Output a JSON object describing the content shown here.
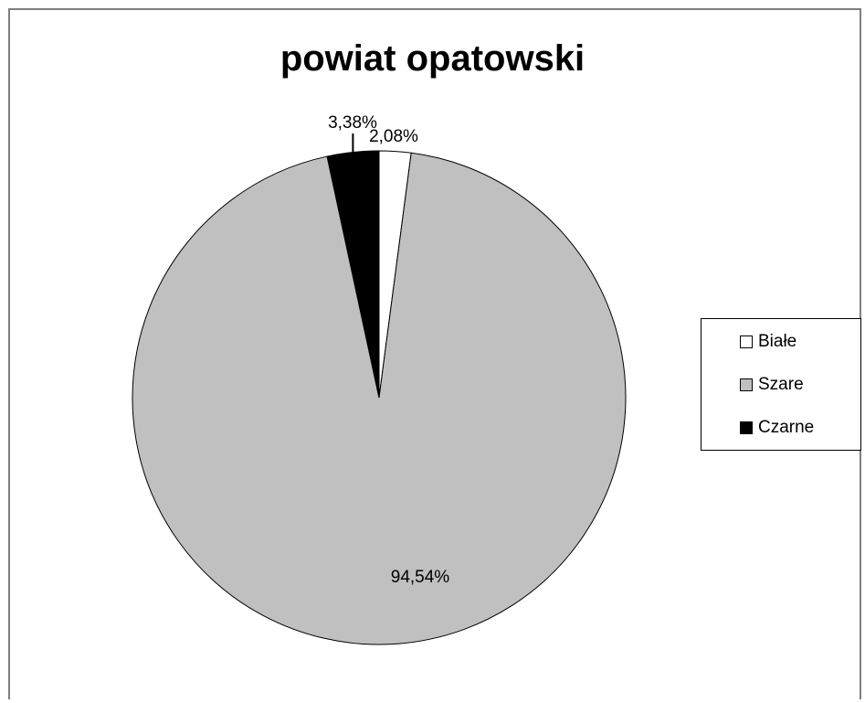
{
  "chart_data": {
    "type": "pie",
    "title": "powiat opatowski",
    "categories": [
      "Białe",
      "Szare",
      "Czarne"
    ],
    "values": [
      2.08,
      94.54,
      3.38
    ],
    "value_labels": [
      "2,08%",
      "94,54%",
      "3,38%"
    ],
    "colors": [
      "#ffffff",
      "#c0c0c0",
      "#000000"
    ],
    "legend_position": "right"
  }
}
